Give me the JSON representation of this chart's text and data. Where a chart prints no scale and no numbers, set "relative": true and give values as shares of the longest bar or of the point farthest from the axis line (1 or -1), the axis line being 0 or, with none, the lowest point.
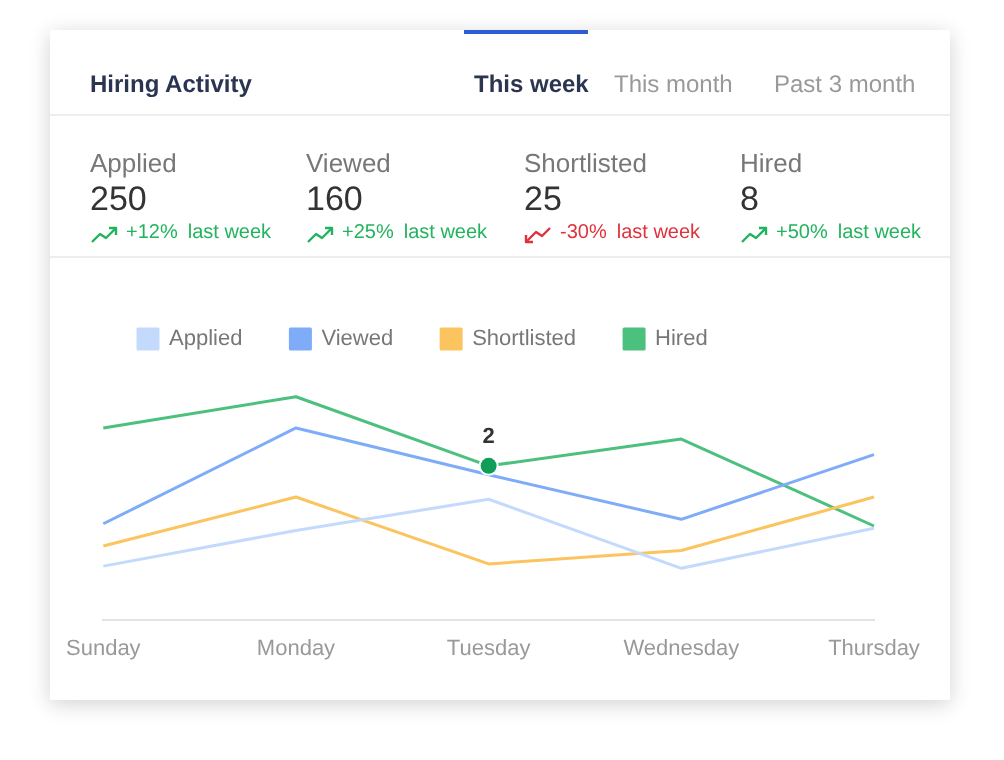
{
  "chart_data": {
    "type": "line",
    "title": "Hiring Activity",
    "relative": true,
    "annotations": [
      "This week",
      "This month",
      "Past 3 month",
      "Applied",
      "250",
      "+12%",
      "last week",
      "Viewed",
      "160",
      "+25%",
      "last week",
      "Shortlisted",
      "25",
      "-30%",
      "last week",
      "Hired",
      "8",
      "+50%",
      "last week",
      {
        "text": "2",
        "x": "Tuesday",
        "y": 0.69
      }
    ],
    "categories": [
      "Sunday",
      "Monday",
      "Tuesday",
      "Wednesday",
      "Thursday"
    ],
    "series": [
      {
        "name": "Applied",
        "color": "#c4dafc",
        "values": [
          0.24,
          0.4,
          0.54,
          0.23,
          0.41
        ]
      },
      {
        "name": "Viewed",
        "color": "#7eacf8",
        "values": [
          0.43,
          0.86,
          0.65,
          0.45,
          0.74
        ]
      },
      {
        "name": "Shortlisted",
        "color": "#fbc45f",
        "values": [
          0.33,
          0.55,
          0.25,
          0.31,
          0.55
        ]
      },
      {
        "name": "Hired",
        "color": "#4cc07e",
        "values": [
          0.86,
          1.0,
          0.69,
          0.81,
          0.42
        ]
      }
    ],
    "legend": "top",
    "grid": false,
    "marker": "none",
    "line_style": "solid"
  }
}
